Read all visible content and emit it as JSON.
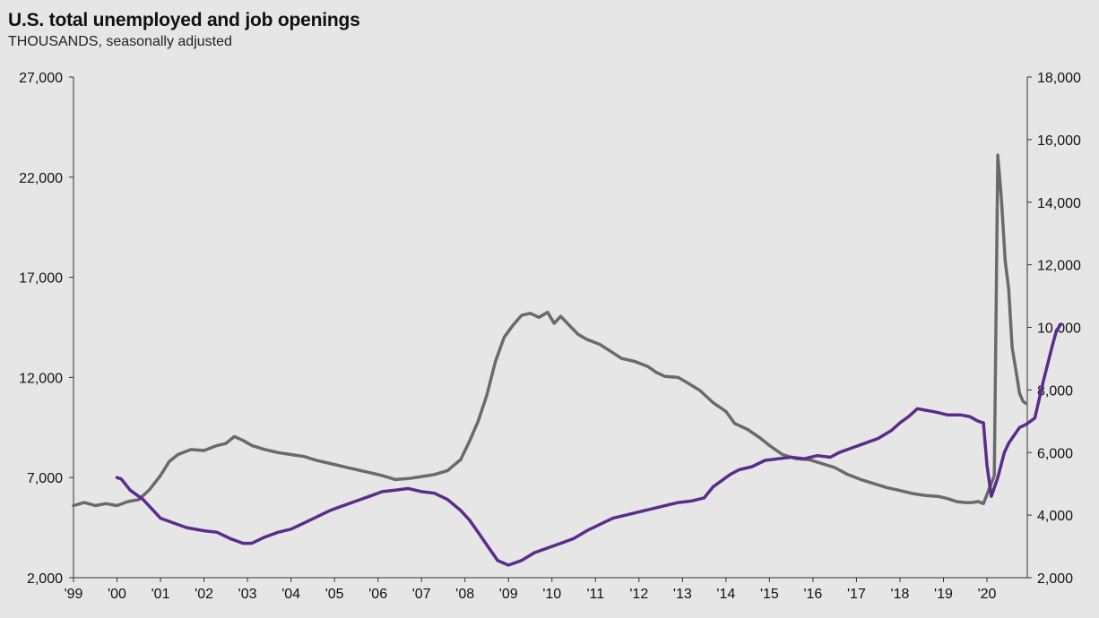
{
  "chart_data": {
    "type": "line",
    "title": "U.S. total unemployed and job openings",
    "subtitle": "THOUSANDS, seasonally adjusted",
    "xlabel": "",
    "ylabel_left": "",
    "ylabel_right": "",
    "x_range": [
      1999.0,
      2020.9
    ],
    "x_ticks": [
      {
        "x": 1999,
        "label": "'99"
      },
      {
        "x": 2000,
        "label": "'00"
      },
      {
        "x": 2001,
        "label": "'01"
      },
      {
        "x": 2002,
        "label": "'02"
      },
      {
        "x": 2003,
        "label": "'03"
      },
      {
        "x": 2004,
        "label": "'04"
      },
      {
        "x": 2005,
        "label": "'05"
      },
      {
        "x": 2006,
        "label": "'06"
      },
      {
        "x": 2007,
        "label": "'07"
      },
      {
        "x": 2008,
        "label": "'08"
      },
      {
        "x": 2009,
        "label": "'09"
      },
      {
        "x": 2010,
        "label": "'10"
      },
      {
        "x": 2011,
        "label": "'11"
      },
      {
        "x": 2012,
        "label": "'12"
      },
      {
        "x": 2013,
        "label": "'13"
      },
      {
        "x": 2014,
        "label": "'14"
      },
      {
        "x": 2015,
        "label": "'15"
      },
      {
        "x": 2016,
        "label": "'16"
      },
      {
        "x": 2017,
        "label": "'17"
      },
      {
        "x": 2018,
        "label": "'18"
      },
      {
        "x": 2019,
        "label": "'19"
      },
      {
        "x": 2020,
        "label": "'20"
      }
    ],
    "y_left": {
      "range": [
        2000,
        27000
      ],
      "ticks": [
        2000,
        7000,
        12000,
        17000,
        22000,
        27000
      ],
      "tick_labels": [
        "2,000",
        "7,000",
        "12,000",
        "17,000",
        "22,000",
        "27,000"
      ]
    },
    "y_right": {
      "range": [
        2000,
        18000
      ],
      "ticks": [
        2000,
        4000,
        6000,
        8000,
        10000,
        12000,
        14000,
        16000,
        18000
      ],
      "tick_labels": [
        "2,000",
        "4,000",
        "6,000",
        "8,000",
        "10,000",
        "12,000",
        "14,000",
        "16,000",
        "18,000"
      ]
    },
    "grid": false,
    "legend": "none",
    "series": [
      {
        "axis": "left",
        "color": "#6a6a6a",
        "points": [
          [
            1999.0,
            5600
          ],
          [
            1999.25,
            5750
          ],
          [
            1999.5,
            5600
          ],
          [
            1999.75,
            5700
          ],
          [
            2000.0,
            5600
          ],
          [
            2000.25,
            5800
          ],
          [
            2000.5,
            5900
          ],
          [
            2000.75,
            6400
          ],
          [
            2001.0,
            7100
          ],
          [
            2001.2,
            7800
          ],
          [
            2001.4,
            8150
          ],
          [
            2001.7,
            8400
          ],
          [
            2002.0,
            8350
          ],
          [
            2002.3,
            8600
          ],
          [
            2002.5,
            8700
          ],
          [
            2002.7,
            9050
          ],
          [
            2002.9,
            8850
          ],
          [
            2003.1,
            8600
          ],
          [
            2003.4,
            8400
          ],
          [
            2003.7,
            8250
          ],
          [
            2004.0,
            8150
          ],
          [
            2004.3,
            8050
          ],
          [
            2004.6,
            7850
          ],
          [
            2004.9,
            7700
          ],
          [
            2005.2,
            7550
          ],
          [
            2005.5,
            7400
          ],
          [
            2005.8,
            7250
          ],
          [
            2006.1,
            7100
          ],
          [
            2006.4,
            6900
          ],
          [
            2006.7,
            6950
          ],
          [
            2007.0,
            7050
          ],
          [
            2007.3,
            7150
          ],
          [
            2007.6,
            7350
          ],
          [
            2007.9,
            7900
          ],
          [
            2008.1,
            8800
          ],
          [
            2008.3,
            9800
          ],
          [
            2008.5,
            11100
          ],
          [
            2008.7,
            12800
          ],
          [
            2008.9,
            14000
          ],
          [
            2009.1,
            14600
          ],
          [
            2009.3,
            15100
          ],
          [
            2009.5,
            15200
          ],
          [
            2009.7,
            15000
          ],
          [
            2009.9,
            15250
          ],
          [
            2010.05,
            14700
          ],
          [
            2010.2,
            15050
          ],
          [
            2010.4,
            14600
          ],
          [
            2010.6,
            14150
          ],
          [
            2010.8,
            13900
          ],
          [
            2011.1,
            13650
          ],
          [
            2011.35,
            13300
          ],
          [
            2011.6,
            12950
          ],
          [
            2011.9,
            12800
          ],
          [
            2012.2,
            12550
          ],
          [
            2012.4,
            12250
          ],
          [
            2012.6,
            12050
          ],
          [
            2012.9,
            12000
          ],
          [
            2013.1,
            11750
          ],
          [
            2013.4,
            11350
          ],
          [
            2013.7,
            10750
          ],
          [
            2014.0,
            10300
          ],
          [
            2014.2,
            9700
          ],
          [
            2014.5,
            9400
          ],
          [
            2014.8,
            8950
          ],
          [
            2015.0,
            8600
          ],
          [
            2015.3,
            8150
          ],
          [
            2015.6,
            7950
          ],
          [
            2015.9,
            7900
          ],
          [
            2016.2,
            7700
          ],
          [
            2016.5,
            7500
          ],
          [
            2016.8,
            7150
          ],
          [
            2017.1,
            6900
          ],
          [
            2017.4,
            6700
          ],
          [
            2017.7,
            6500
          ],
          [
            2018.0,
            6350
          ],
          [
            2018.3,
            6200
          ],
          [
            2018.6,
            6100
          ],
          [
            2018.9,
            6050
          ],
          [
            2019.1,
            5950
          ],
          [
            2019.3,
            5800
          ],
          [
            2019.5,
            5750
          ],
          [
            2019.65,
            5750
          ],
          [
            2019.8,
            5800
          ],
          [
            2019.92,
            5700
          ],
          [
            2020.17,
            7100
          ],
          [
            2020.25,
            23100
          ],
          [
            2020.33,
            21000
          ],
          [
            2020.42,
            17800
          ],
          [
            2020.5,
            16400
          ],
          [
            2020.58,
            13500
          ],
          [
            2020.67,
            12300
          ],
          [
            2020.75,
            11200
          ],
          [
            2020.83,
            10800
          ],
          [
            2020.9,
            10700
          ]
        ]
      },
      {
        "axis": "right",
        "color": "#5b2c8c",
        "points": [
          [
            2000.0,
            5200
          ],
          [
            2000.1,
            5150
          ],
          [
            2000.3,
            4800
          ],
          [
            2000.6,
            4500
          ],
          [
            2000.8,
            4200
          ],
          [
            2001.0,
            3900
          ],
          [
            2001.3,
            3750
          ],
          [
            2001.6,
            3600
          ],
          [
            2002.0,
            3500
          ],
          [
            2002.3,
            3450
          ],
          [
            2002.6,
            3250
          ],
          [
            2002.9,
            3100
          ],
          [
            2003.1,
            3100
          ],
          [
            2003.4,
            3300
          ],
          [
            2003.7,
            3450
          ],
          [
            2004.0,
            3550
          ],
          [
            2004.3,
            3750
          ],
          [
            2004.6,
            3950
          ],
          [
            2004.9,
            4150
          ],
          [
            2005.2,
            4300
          ],
          [
            2005.5,
            4450
          ],
          [
            2005.8,
            4600
          ],
          [
            2006.1,
            4750
          ],
          [
            2006.4,
            4800
          ],
          [
            2006.7,
            4850
          ],
          [
            2007.0,
            4750
          ],
          [
            2007.3,
            4700
          ],
          [
            2007.6,
            4500
          ],
          [
            2007.9,
            4150
          ],
          [
            2008.1,
            3850
          ],
          [
            2008.3,
            3450
          ],
          [
            2008.55,
            2950
          ],
          [
            2008.75,
            2550
          ],
          [
            2009.0,
            2400
          ],
          [
            2009.3,
            2550
          ],
          [
            2009.6,
            2800
          ],
          [
            2009.9,
            2950
          ],
          [
            2010.2,
            3100
          ],
          [
            2010.5,
            3250
          ],
          [
            2010.8,
            3500
          ],
          [
            2011.1,
            3700
          ],
          [
            2011.4,
            3900
          ],
          [
            2011.7,
            4000
          ],
          [
            2012.0,
            4100
          ],
          [
            2012.3,
            4200
          ],
          [
            2012.6,
            4300
          ],
          [
            2012.9,
            4400
          ],
          [
            2013.2,
            4450
          ],
          [
            2013.5,
            4550
          ],
          [
            2013.7,
            4900
          ],
          [
            2013.9,
            5100
          ],
          [
            2014.1,
            5300
          ],
          [
            2014.3,
            5450
          ],
          [
            2014.6,
            5550
          ],
          [
            2014.9,
            5750
          ],
          [
            2015.2,
            5800
          ],
          [
            2015.5,
            5850
          ],
          [
            2015.8,
            5800
          ],
          [
            2016.1,
            5900
          ],
          [
            2016.4,
            5850
          ],
          [
            2016.6,
            6000
          ],
          [
            2016.9,
            6150
          ],
          [
            2017.2,
            6300
          ],
          [
            2017.5,
            6450
          ],
          [
            2017.8,
            6700
          ],
          [
            2018.0,
            6950
          ],
          [
            2018.2,
            7150
          ],
          [
            2018.4,
            7400
          ],
          [
            2018.6,
            7350
          ],
          [
            2018.8,
            7300
          ],
          [
            2019.1,
            7200
          ],
          [
            2019.4,
            7200
          ],
          [
            2019.6,
            7150
          ],
          [
            2019.8,
            7000
          ],
          [
            2019.92,
            6950
          ],
          [
            2020.0,
            5600
          ],
          [
            2020.1,
            4600
          ],
          [
            2020.25,
            5200
          ],
          [
            2020.4,
            6000
          ],
          [
            2020.5,
            6300
          ],
          [
            2020.6,
            6500
          ],
          [
            2020.75,
            6800
          ],
          [
            2020.9,
            6900
          ],
          [
            2021.1,
            7100
          ],
          [
            2021.3,
            8300
          ],
          [
            2021.5,
            9400
          ],
          [
            2021.6,
            9900
          ],
          [
            2021.7,
            10100
          ]
        ]
      }
    ]
  }
}
